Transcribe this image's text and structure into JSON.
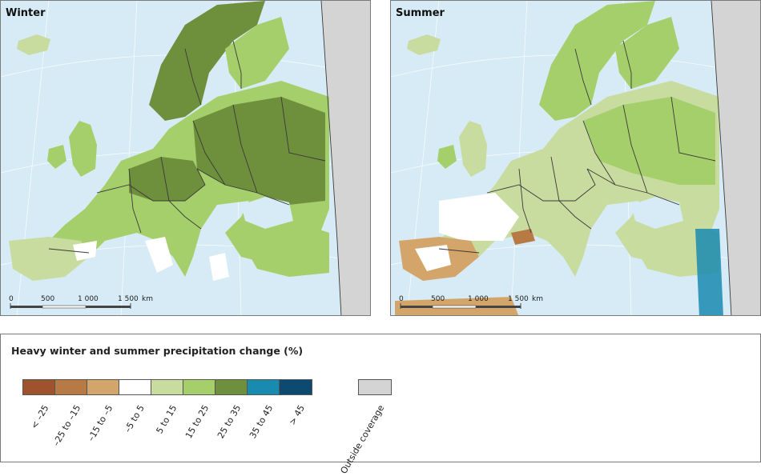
{
  "panels": [
    {
      "title": "Winter",
      "scale_ticks": [
        "0",
        "500",
        "1 000",
        "1 500"
      ],
      "scale_unit": "km"
    },
    {
      "title": "Summer",
      "scale_ticks": [
        "0",
        "500",
        "1 000",
        "1 500"
      ],
      "scale_unit": "km"
    }
  ],
  "legend": {
    "title": "Heavy winter and summer precipitation change (%)",
    "classes": [
      {
        "label": "< -25",
        "color": "#a0522d"
      },
      {
        "label": "-25 to -15",
        "color": "#b87a45"
      },
      {
        "label": "-15 to -5",
        "color": "#d4a56a"
      },
      {
        "label": "-5 to 5",
        "color": "#ffffff"
      },
      {
        "label": "5 to 15",
        "color": "#c8dca0"
      },
      {
        "label": "15 to 25",
        "color": "#a5cf6a"
      },
      {
        "label": "25 to 35",
        "color": "#6e8f3c"
      },
      {
        "label": "35 to 45",
        "color": "#1a8bb0"
      },
      {
        "label": "> 45",
        "color": "#0d4a72"
      }
    ],
    "outside_label": "Outside coverage",
    "outside_color": "#d4d4d4"
  },
  "colors": {
    "sea": "#d6ebf5",
    "outside": "#d4d4d4",
    "border": "#3a3a3a"
  }
}
